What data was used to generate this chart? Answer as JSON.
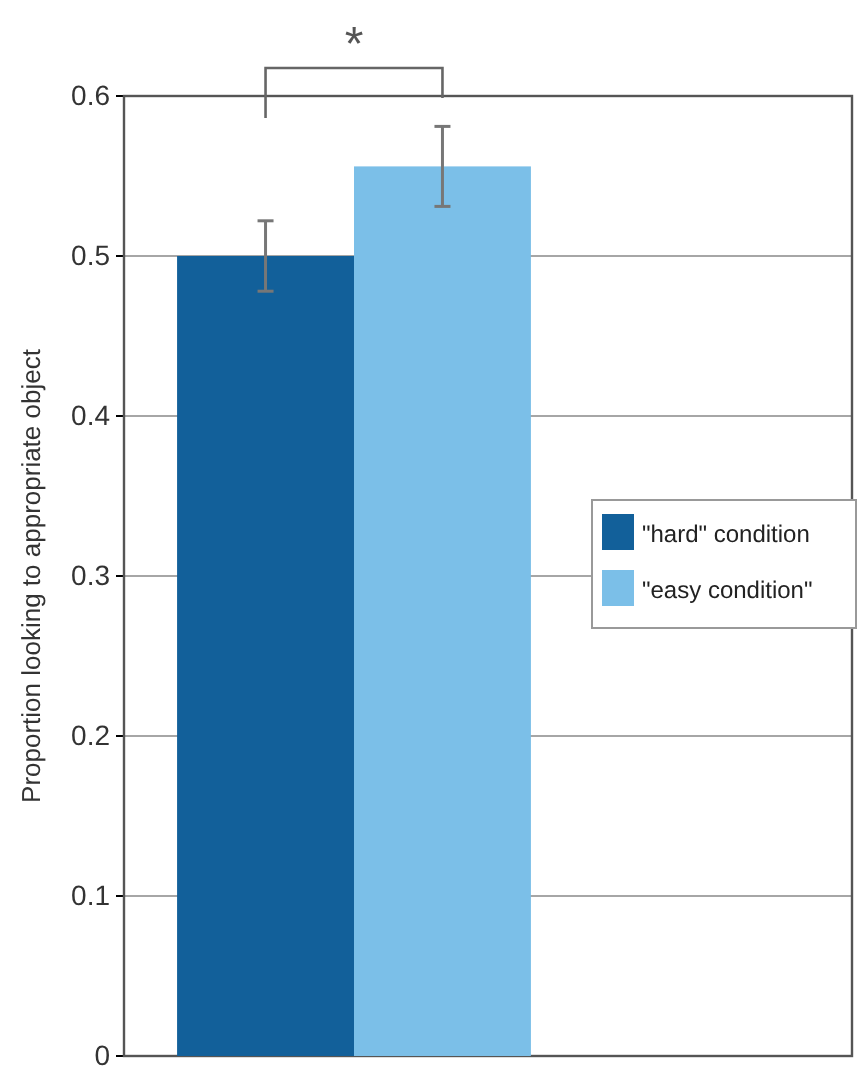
{
  "chart_data": {
    "type": "bar",
    "ylabel": "Proportion looking to appropriate object",
    "categories": [
      null
    ],
    "series": [
      {
        "name": "\"hard\" condition",
        "color": "#12609a",
        "values": [
          0.5
        ],
        "errors": [
          0.022
        ]
      },
      {
        "name": "\"easy condition\"",
        "color": "#7bbfe8",
        "values": [
          0.556
        ],
        "errors": [
          0.025
        ]
      }
    ],
    "ylim": [
      0,
      0.6
    ],
    "yticks": [
      0,
      0.1,
      0.2,
      0.3,
      0.4,
      0.5,
      0.6
    ],
    "grid": "y",
    "legend": "right",
    "annotations": [
      "*"
    ]
  }
}
